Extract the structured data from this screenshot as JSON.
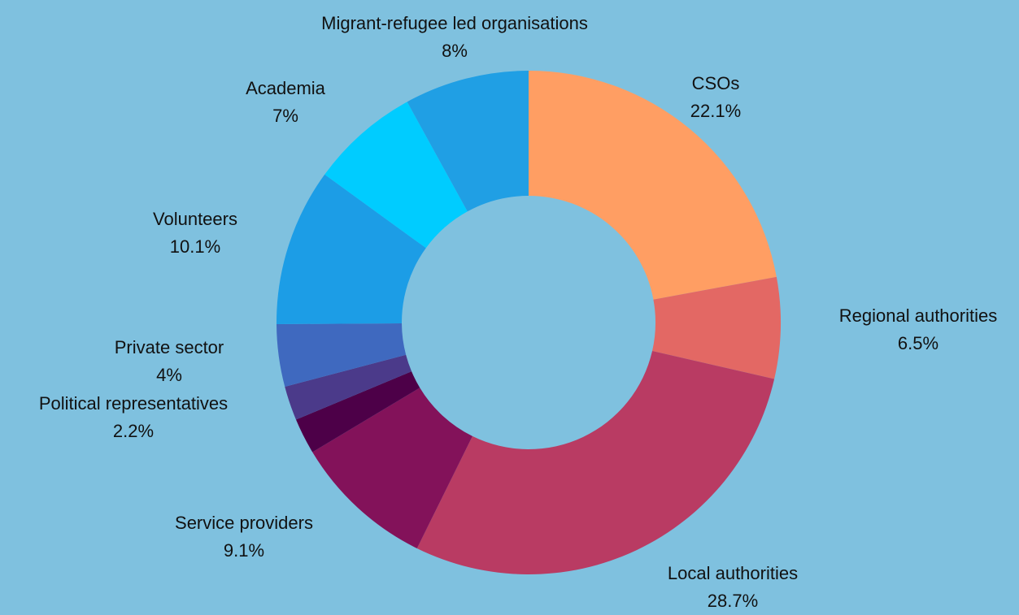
{
  "chart_data": {
    "type": "pie",
    "style": "donut",
    "legend": "none",
    "background_color": "#7fc1df",
    "slices": [
      {
        "label": "CSOs",
        "value_label": "22.1%",
        "value": 22.1,
        "color": "#ff9e63"
      },
      {
        "label": "Regional authorities",
        "value_label": "6.5%",
        "value": 6.5,
        "color": "#e36864"
      },
      {
        "label": "Local authorities",
        "value_label": "28.7%",
        "value": 28.7,
        "color": "#b93b63"
      },
      {
        "label": "Service providers",
        "value_label": "9.1%",
        "value": 9.1,
        "color": "#83125a"
      },
      {
        "label": "",
        "value_label": "",
        "value": 2.3,
        "color": "#4d0048"
      },
      {
        "label": "Political representatives",
        "value_label": "2.2%",
        "value": 2.2,
        "color": "#4b3a8a"
      },
      {
        "label": "Private sector",
        "value_label": "4%",
        "value": 4.0,
        "color": "#3f69bf"
      },
      {
        "label": "Volunteers",
        "value_label": "10.1%",
        "value": 10.1,
        "color": "#1c9de6"
      },
      {
        "label": "Academia",
        "value_label": "7%",
        "value": 7.0,
        "color": "#00ccff"
      },
      {
        "label": "Migrant-refugee led organisations",
        "value_label": "8%",
        "value": 8.0,
        "color": "#209fe4"
      }
    ]
  }
}
